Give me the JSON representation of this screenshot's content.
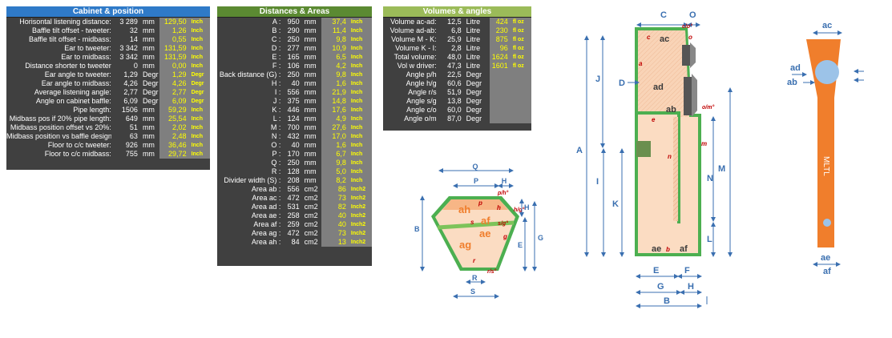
{
  "cabinet": {
    "title": "Cabinet & position",
    "rows": [
      {
        "label": "Horisontal listening distance:",
        "v1": "3 289",
        "u1": "mm",
        "v2": "129,50",
        "u2": "Inch"
      },
      {
        "label": "Baffle tilt offset - tweeter:",
        "v1": "32",
        "u1": "mm",
        "v2": "1,26",
        "u2": "Inch"
      },
      {
        "label": "Baffle tilt offset - midbass:",
        "v1": "14",
        "u1": "mm",
        "v2": "0,55",
        "u2": "Inch"
      },
      {
        "label": "Ear to tweeter:",
        "v1": "3 342",
        "u1": "mm",
        "v2": "131,59",
        "u2": "Inch"
      },
      {
        "label": "Ear to midbass:",
        "v1": "3 342",
        "u1": "mm",
        "v2": "131,59",
        "u2": "Inch"
      },
      {
        "label": "Distance shorter to tweeter",
        "v1": "0",
        "u1": "mm",
        "v2": "0,00",
        "u2": "Inch"
      },
      {
        "label": "Ear angle to tweeter:",
        "v1": "1,29",
        "u1": "Degr",
        "v2": "1,29",
        "u2": "Degr"
      },
      {
        "label": "Ear angle to midbass:",
        "v1": "4,26",
        "u1": "Degr",
        "v2": "4,26",
        "u2": "Degr"
      },
      {
        "label": "Average listening angle:",
        "v1": "2,77",
        "u1": "Degr",
        "v2": "2,77",
        "u2": "Degr"
      },
      {
        "label": "Angle on cabinet baffle:",
        "v1": "6,09",
        "u1": "Degr",
        "v2": "6,09",
        "u2": "Degr"
      },
      {
        "label": "Pipe length:",
        "v1": "1506",
        "u1": "mm",
        "v2": "59,29",
        "u2": "Inch"
      },
      {
        "label": "Midbass pos if 20% pipe length:",
        "v1": "649",
        "u1": "mm",
        "v2": "25,54",
        "u2": "Inch"
      },
      {
        "label": "Midbass position offset vs 20%:",
        "v1": "51",
        "u1": "mm",
        "v2": "2,02",
        "u2": "Inch"
      },
      {
        "label": "Midbass position vs baffle design:",
        "v1": "63",
        "u1": "mm",
        "v2": "2,48",
        "u2": "Inch"
      },
      {
        "label": "Floor to c/c tweeter:",
        "v1": "926",
        "u1": "mm",
        "v2": "36,46",
        "u2": "Inch"
      },
      {
        "label": "Floor to c/c midbass:",
        "v1": "755",
        "u1": "mm",
        "v2": "29,72",
        "u2": "Inch"
      }
    ]
  },
  "distances": {
    "title": "Distances & Areas",
    "rows": [
      {
        "label": "A :",
        "v1": "950",
        "u1": "mm",
        "v2": "37,4",
        "u2": "Inch"
      },
      {
        "label": "B :",
        "v1": "290",
        "u1": "mm",
        "v2": "11,4",
        "u2": "Inch"
      },
      {
        "label": "C :",
        "v1": "250",
        "u1": "mm",
        "v2": "9,8",
        "u2": "Inch"
      },
      {
        "label": "D :",
        "v1": "277",
        "u1": "mm",
        "v2": "10,9",
        "u2": "Inch"
      },
      {
        "label": "E :",
        "v1": "165",
        "u1": "mm",
        "v2": "6,5",
        "u2": "Inch"
      },
      {
        "label": "F :",
        "v1": "106",
        "u1": "mm",
        "v2": "4,2",
        "u2": "Inch"
      },
      {
        "label": "Back distance (G) :",
        "v1": "250",
        "u1": "mm",
        "v2": "9,8",
        "u2": "Inch"
      },
      {
        "label": "H :",
        "v1": "40",
        "u1": "mm",
        "v2": "1,6",
        "u2": "Inch"
      },
      {
        "label": "I :",
        "v1": "556",
        "u1": "mm",
        "v2": "21,9",
        "u2": "Inch"
      },
      {
        "label": "J :",
        "v1": "375",
        "u1": "mm",
        "v2": "14,8",
        "u2": "Inch"
      },
      {
        "label": "K :",
        "v1": "446",
        "u1": "mm",
        "v2": "17,6",
        "u2": "Inch"
      },
      {
        "label": "L :",
        "v1": "124",
        "u1": "mm",
        "v2": "4,9",
        "u2": "Inch"
      },
      {
        "label": "M :",
        "v1": "700",
        "u1": "mm",
        "v2": "27,6",
        "u2": "Inch"
      },
      {
        "label": "N :",
        "v1": "432",
        "u1": "mm",
        "v2": "17,0",
        "u2": "Inch"
      },
      {
        "label": "O :",
        "v1": "40",
        "u1": "mm",
        "v2": "1,6",
        "u2": "Inch"
      },
      {
        "label": "P :",
        "v1": "170",
        "u1": "mm",
        "v2": "6,7",
        "u2": "Inch"
      },
      {
        "label": "Q :",
        "v1": "250",
        "u1": "mm",
        "v2": "9,8",
        "u2": "Inch"
      },
      {
        "label": "R :",
        "v1": "128",
        "u1": "mm",
        "v2": "5,0",
        "u2": "Inch"
      },
      {
        "label": "Divider width (S) :",
        "v1": "208",
        "u1": "mm",
        "v2": "8,2",
        "u2": "Inch"
      },
      {
        "label": "Area ab :",
        "v1": "556",
        "u1": "cm2",
        "v2": "86",
        "u2": "Inch2"
      },
      {
        "label": "Area ac :",
        "v1": "472",
        "u1": "cm2",
        "v2": "73",
        "u2": "Inch2"
      },
      {
        "label": "Area ad :",
        "v1": "531",
        "u1": "cm2",
        "v2": "82",
        "u2": "Inch2"
      },
      {
        "label": "Area ae :",
        "v1": "258",
        "u1": "cm2",
        "v2": "40",
        "u2": "Inch2"
      },
      {
        "label": "Area af :",
        "v1": "259",
        "u1": "cm2",
        "v2": "40",
        "u2": "Inch2"
      },
      {
        "label": "Area ag :",
        "v1": "472",
        "u1": "cm2",
        "v2": "73",
        "u2": "Inch2"
      },
      {
        "label": "Area ah :",
        "v1": "84",
        "u1": "cm2",
        "v2": "13",
        "u2": "Inch2"
      }
    ]
  },
  "volumes": {
    "title": "Volumes & angles",
    "rows": [
      {
        "label": "Volume ac-ad:",
        "v1": "12,5",
        "u1": "Litre",
        "v2": "424",
        "u2": "fl oz"
      },
      {
        "label": "Volume ad-ab:",
        "v1": "6,8",
        "u1": "Litre",
        "v2": "230",
        "u2": "fl oz"
      },
      {
        "label": "Volume  M - K:",
        "v1": "25,9",
        "u1": "Litre",
        "v2": "875",
        "u2": "fl oz"
      },
      {
        "label": "Volume K - I:",
        "v1": "2,8",
        "u1": "Litre",
        "v2": "96",
        "u2": "fl oz"
      },
      {
        "label": "Total volume:",
        "v1": "48,0",
        "u1": "Litre",
        "v2": "1624",
        "u2": "fl oz"
      },
      {
        "label": "Vol w driver:",
        "v1": "47,3",
        "u1": "Litre",
        "v2": "1601",
        "u2": "fl oz"
      },
      {
        "label": "Angle p/h",
        "v1": "22,5",
        "u1": "Degr",
        "v2": "",
        "u2": ""
      },
      {
        "label": "Angle h/g",
        "v1": "60,6",
        "u1": "Degr",
        "v2": "",
        "u2": ""
      },
      {
        "label": "Angle r/s",
        "v1": "51,9",
        "u1": "Degr",
        "v2": "",
        "u2": ""
      },
      {
        "label": "Angle s/g",
        "v1": "13,8",
        "u1": "Degr",
        "v2": "",
        "u2": ""
      },
      {
        "label": "Angle c/o",
        "v1": "60,0",
        "u1": "Degr",
        "v2": "",
        "u2": ""
      },
      {
        "label": "Angle o/m",
        "v1": "87,0",
        "u1": "Degr",
        "v2": "",
        "u2": ""
      }
    ]
  },
  "top_view": {
    "dims": {
      "Q": "Q",
      "P": "P",
      "H": "H",
      "B": "B",
      "E": "E",
      "G": "G",
      "R": "R",
      "S": "S"
    },
    "areas": {
      "ah": "ah",
      "af": "af",
      "ae": "ae",
      "ag": "ag"
    },
    "edges": {
      "p": "p",
      "h": "h",
      "s": "s",
      "g": "g",
      "r": "r",
      "ph": "p/h°",
      "hg": "h/g°",
      "sg": "s/g°",
      "rs": "r/s°"
    }
  },
  "side_view": {
    "dims": {
      "C": "C",
      "O": "O",
      "J": "J",
      "D": "D",
      "A": "A",
      "I": "I",
      "K": "K",
      "N": "N",
      "M": "M",
      "L": "L",
      "E": "E",
      "F": "F",
      "G": "G",
      "H": "H",
      "B": "B"
    },
    "areas": {
      "ac": "ac",
      "ad": "ad",
      "ab": "ab",
      "ae": "ae",
      "af": "af"
    },
    "edges": {
      "c": "c",
      "co": "c/o°",
      "o": "o",
      "a": "a",
      "om": "o/m°",
      "e": "e",
      "m": "m",
      "n": "n",
      "b": "b"
    }
  },
  "front_view": {
    "label": "MLTL",
    "areas": {
      "ac": "ac",
      "ad": "ad",
      "ab": "ab",
      "ae": "ae",
      "af": "af"
    }
  },
  "colors": {
    "accent_blue": "#2f7ac8",
    "green": "#5b8a32",
    "light_green": "#9bbb59",
    "orange": "#f07e2c",
    "dim_blue": "#3a6fb0"
  }
}
